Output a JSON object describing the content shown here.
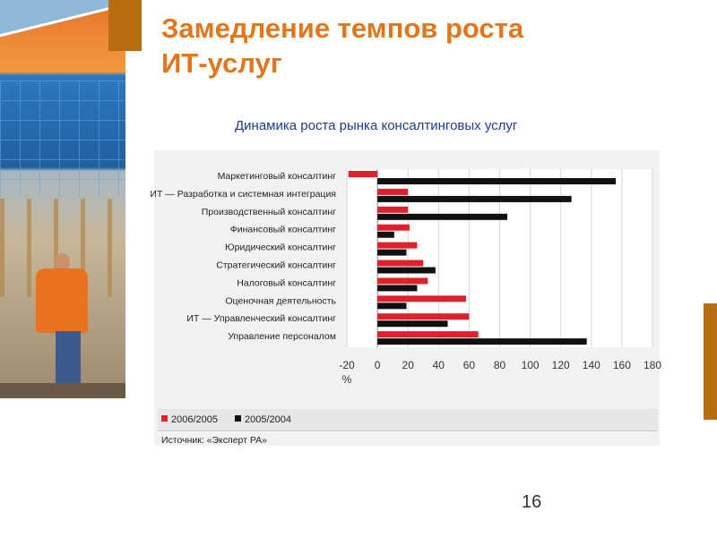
{
  "slide": {
    "title_line1": "Замедление темпов роста",
    "title_line2": "ИТ-услуг",
    "subtitle": "Динамика роста рынка консалтинговых услуг",
    "page_number": "16"
  },
  "colors": {
    "accent": "#e2761b",
    "subtitle": "#1e3c8c",
    "series_2006": "#e0202a",
    "series_2005": "#111111"
  },
  "chart_data": {
    "type": "bar",
    "orientation": "horizontal",
    "title": "",
    "xlabel": "%",
    "ylabel": "",
    "xlim": [
      -20,
      180
    ],
    "xticks": [
      -20,
      0,
      20,
      40,
      60,
      80,
      100,
      120,
      140,
      160,
      180
    ],
    "grid": true,
    "legend_position": "bottom-left",
    "categories": [
      "Маркетинговый консалтинг",
      "ИТ — Разработка и системная интеграция",
      "Производственный консалтинг",
      "Финансовый консалтинг",
      "Юридический консалтинг",
      "Стратегический консалтинг",
      "Налоговый консалтинг",
      "Оценочная деятельность",
      "ИТ — Управленческий консалтинг",
      "Управление персоналом"
    ],
    "series": [
      {
        "name": "2006/2005",
        "color": "#e0202a",
        "values": [
          -19,
          20,
          20,
          21,
          26,
          30,
          33,
          58,
          60,
          66
        ]
      },
      {
        "name": "2005/2004",
        "color": "#111111",
        "values": [
          156,
          127,
          85,
          11,
          19,
          38,
          26,
          19,
          46,
          137
        ]
      }
    ],
    "source": "Источник: «Эксперт РА»"
  }
}
